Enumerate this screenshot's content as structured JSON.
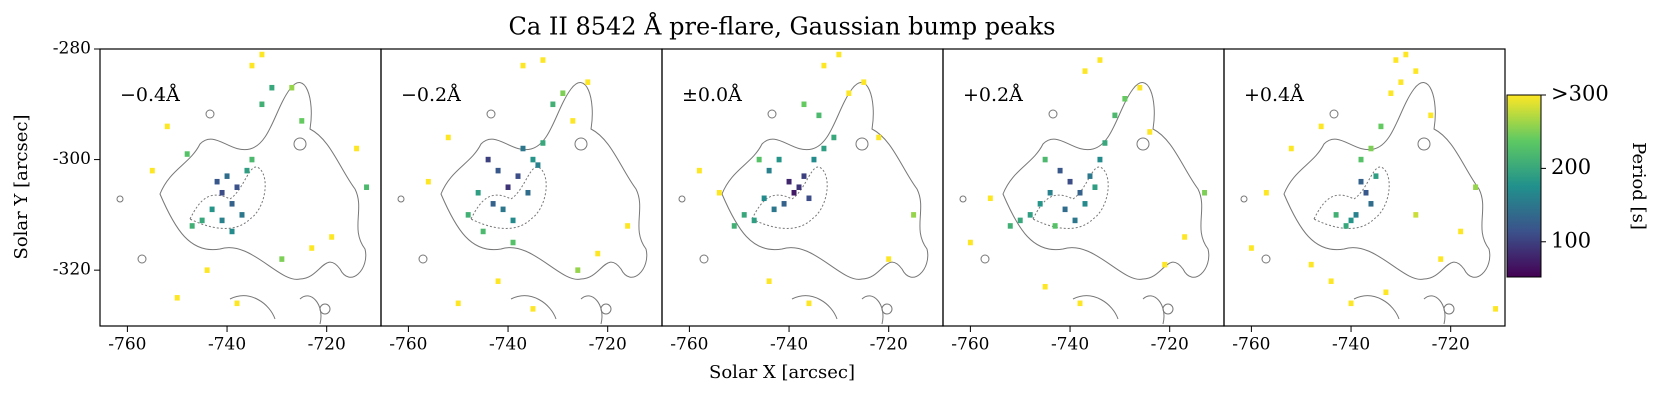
{
  "title": "Ca II 8542 Å pre-flare, Gaussian bump peaks",
  "x_label": "Solar X [arcsec]",
  "y_label": "Solar Y [arcsec]",
  "colorbar": {
    "label": "Period [s]",
    "lim": [
      52,
      300
    ],
    "ticks": [
      100,
      200,
      {
        "value": 300,
        "label": ">300"
      }
    ]
  },
  "chart_data": [
    {
      "type": "scatter",
      "label": "−0.4Å",
      "xlim": [
        -765.5,
        -709.1
      ],
      "ylim": [
        -330.1,
        -280
      ],
      "xticks": [
        -760,
        -740,
        -720
      ],
      "yticks": [
        -280,
        -300,
        -320
      ],
      "x": [
        -742,
        -741,
        -740,
        -739,
        -738,
        -737,
        -741,
        -739,
        -743,
        -745,
        -747,
        -736,
        -735,
        -748,
        -733,
        -731,
        -727,
        -725,
        -752,
        -755,
        -735,
        -733,
        -729,
        -723,
        -719,
        -714,
        -712,
        -744,
        -750,
        -738
      ],
      "y": [
        -304,
        -306,
        -303,
        -308,
        -305,
        -310,
        -311,
        -313,
        -309,
        -311,
        -312,
        -302,
        -300,
        -299,
        -290,
        -287,
        -287,
        -293,
        -294,
        -302,
        -283,
        -281,
        -318,
        -316,
        -314,
        -298,
        -305,
        -320,
        -325,
        -326
      ],
      "values": [
        120,
        110,
        140,
        130,
        115,
        150,
        160,
        170,
        180,
        200,
        210,
        190,
        220,
        230,
        210,
        200,
        260,
        240,
        300,
        300,
        300,
        300,
        250,
        300,
        300,
        300,
        220,
        300,
        300,
        300
      ]
    },
    {
      "type": "scatter",
      "label": "−0.2Å",
      "xlim": [
        -765.5,
        -709.1
      ],
      "ylim": [
        -330.1,
        -280
      ],
      "xticks": [
        -760,
        -740,
        -720
      ],
      "x": [
        -744,
        -742,
        -740,
        -738,
        -736,
        -734,
        -743,
        -741,
        -739,
        -746,
        -748,
        -737,
        -735,
        -733,
        -745,
        -739,
        -731,
        -729,
        -727,
        -724,
        -752,
        -756,
        -737,
        -733,
        -726,
        -722,
        -716,
        -742,
        -750,
        -735
      ],
      "y": [
        -300,
        -302,
        -305,
        -303,
        -306,
        -301,
        -308,
        -309,
        -311,
        -306,
        -310,
        -298,
        -300,
        -297,
        -313,
        -315,
        -290,
        -288,
        -293,
        -286,
        -296,
        -304,
        -283,
        -282,
        -320,
        -317,
        -312,
        -322,
        -326,
        -327
      ],
      "values": [
        100,
        120,
        90,
        110,
        140,
        160,
        130,
        150,
        170,
        190,
        210,
        150,
        180,
        200,
        220,
        230,
        210,
        250,
        300,
        300,
        300,
        300,
        300,
        300,
        260,
        300,
        300,
        300,
        300,
        300
      ]
    },
    {
      "type": "scatter",
      "label": "±0.0Å",
      "xlim": [
        -765.5,
        -709.1
      ],
      "ylim": [
        -330.1,
        -280
      ],
      "xticks": [
        -760,
        -740,
        -720
      ],
      "x": [
        -740,
        -739,
        -738,
        -737,
        -736,
        -741,
        -743,
        -745,
        -747,
        -749,
        -751,
        -744,
        -742,
        -735,
        -733,
        -731,
        -734,
        -737,
        -746,
        -728,
        -725,
        -722,
        -754,
        -758,
        -733,
        -730,
        -720,
        -715,
        -744,
        -736
      ],
      "y": [
        -304,
        -306,
        -305,
        -303,
        -307,
        -308,
        -309,
        -307,
        -311,
        -310,
        -312,
        -302,
        -300,
        -300,
        -298,
        -296,
        -292,
        -290,
        -300,
        -288,
        -286,
        -296,
        -306,
        -302,
        -283,
        -281,
        -318,
        -310,
        -322,
        -326
      ],
      "values": [
        80,
        70,
        90,
        100,
        110,
        130,
        150,
        170,
        190,
        200,
        210,
        160,
        180,
        170,
        190,
        200,
        220,
        240,
        230,
        300,
        300,
        300,
        300,
        300,
        300,
        300,
        300,
        260,
        300,
        300
      ]
    },
    {
      "type": "scatter",
      "label": "+0.2Å",
      "xlim": [
        -765.5,
        -709.1
      ],
      "ylim": [
        -330.1,
        -280
      ],
      "xticks": [
        -760,
        -740,
        -720
      ],
      "x": [
        -742,
        -740,
        -738,
        -736,
        -734,
        -744,
        -746,
        -748,
        -750,
        -752,
        -741,
        -739,
        -737,
        -735,
        -733,
        -745,
        -743,
        -731,
        -729,
        -726,
        -724,
        -756,
        -760,
        -737,
        -734,
        -721,
        -717,
        -713,
        -745,
        -738
      ],
      "y": [
        -302,
        -304,
        -306,
        -303,
        -300,
        -306,
        -308,
        -310,
        -311,
        -312,
        -309,
        -311,
        -308,
        -305,
        -297,
        -300,
        -312,
        -292,
        -289,
        -287,
        -295,
        -307,
        -315,
        -284,
        -282,
        -319,
        -314,
        -306,
        -323,
        -326
      ],
      "values": [
        120,
        110,
        130,
        150,
        170,
        160,
        180,
        190,
        200,
        210,
        140,
        150,
        170,
        190,
        200,
        220,
        230,
        220,
        240,
        300,
        300,
        300,
        300,
        300,
        300,
        300,
        300,
        250,
        300,
        300
      ]
    },
    {
      "type": "scatter",
      "label": "+0.4Å",
      "xlim": [
        -765.5,
        -709.1
      ],
      "ylim": [
        -330.1,
        -280
      ],
      "xticks": [
        -760,
        -740,
        -720
      ],
      "x": [
        -738,
        -737,
        -736,
        -739,
        -740,
        -735,
        -741,
        -743,
        -738,
        -736,
        -734,
        -732,
        -730,
        -727,
        -724,
        -746,
        -752,
        -757,
        -731,
        -729,
        -722,
        -718,
        -715,
        -711,
        -744,
        -740,
        -733,
        -760,
        -748,
        -727
      ],
      "y": [
        -304,
        -306,
        -308,
        -310,
        -311,
        -303,
        -312,
        -310,
        -300,
        -298,
        -294,
        -288,
        -286,
        -284,
        -292,
        -294,
        -298,
        -306,
        -282,
        -281,
        -318,
        -313,
        -305,
        -327,
        -322,
        -326,
        -324,
        -316,
        -319,
        -310
      ],
      "values": [
        130,
        120,
        140,
        160,
        180,
        190,
        200,
        210,
        230,
        250,
        240,
        300,
        300,
        300,
        300,
        300,
        300,
        300,
        300,
        300,
        300,
        300,
        260,
        300,
        300,
        300,
        300,
        300,
        300,
        280
      ]
    }
  ]
}
